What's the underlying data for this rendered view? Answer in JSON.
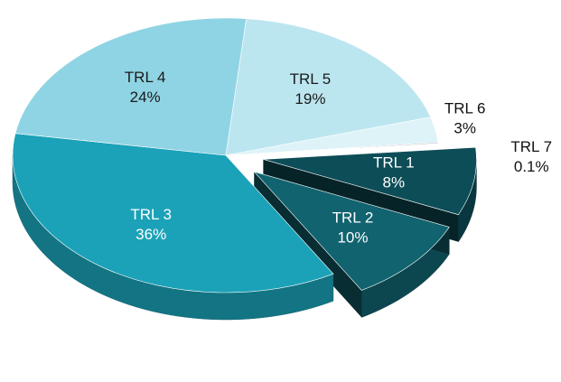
{
  "chart_data": {
    "type": "pie",
    "categories": [
      "TRL 1",
      "TRL 2",
      "TRL 3",
      "TRL 4",
      "TRL 5",
      "TRL 6",
      "TRL 7"
    ],
    "values": [
      8,
      10,
      36,
      24,
      19,
      3,
      0.1
    ],
    "value_labels": [
      "8%",
      "10%",
      "36%",
      "24%",
      "19%",
      "3%",
      "0.1%"
    ],
    "colors": [
      "#0d4d58",
      "#11636f",
      "#1ba2b8",
      "#8fd4e4",
      "#bce6ef",
      "#def3f8",
      "#9a9a9a"
    ]
  }
}
